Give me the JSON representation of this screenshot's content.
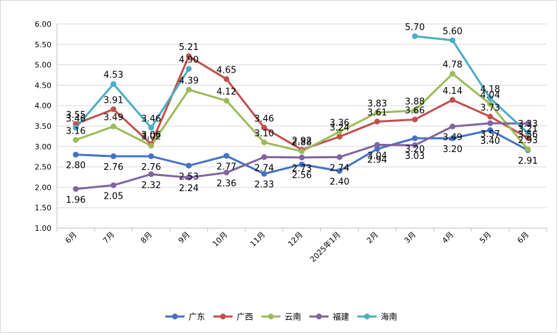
{
  "chart_data": {
    "type": "line",
    "categories": [
      "6月",
      "7月",
      "8月",
      "9月",
      "10月",
      "11月",
      "12月",
      "2025年1月",
      "2月",
      "3月",
      "4月",
      "5月",
      "6月"
    ],
    "ylim": [
      1.0,
      6.0
    ],
    "yticks": [
      "1.00",
      "1.50",
      "2.00",
      "2.50",
      "3.00",
      "3.50",
      "4.00",
      "4.50",
      "5.00",
      "5.50",
      "6.00"
    ],
    "grid": "horizontal",
    "legend_position": "bottom",
    "series": [
      {
        "name": "广东",
        "color": "#4472c4",
        "values": [
          2.8,
          2.76,
          2.76,
          2.53,
          2.77,
          2.33,
          2.56,
          2.4,
          2.94,
          3.2,
          3.2,
          3.4,
          2.91
        ]
      },
      {
        "name": "广西",
        "color": "#c0504d",
        "values": [
          3.55,
          3.91,
          3.06,
          5.21,
          4.65,
          3.46,
          2.92,
          3.24,
          3.61,
          3.66,
          4.14,
          3.73,
          3.21
        ]
      },
      {
        "name": "云南",
        "color": "#9bbb59",
        "values": [
          3.16,
          3.49,
          3.02,
          4.39,
          4.12,
          3.1,
          2.88,
          3.36,
          3.83,
          3.88,
          4.78,
          4.04,
          2.93
        ]
      },
      {
        "name": "福建",
        "color": "#8064a2",
        "values": [
          1.96,
          2.05,
          2.32,
          2.24,
          2.36,
          2.74,
          2.73,
          2.74,
          3.04,
          3.03,
          3.49,
          3.57,
          3.56
        ]
      },
      {
        "name": "海南",
        "color": "#4bacc6",
        "values": [
          3.46,
          4.53,
          3.46,
          4.9,
          null,
          null,
          null,
          null,
          null,
          5.7,
          5.6,
          4.18,
          3.33
        ]
      }
    ],
    "data_labels": [
      [
        "2.80",
        "2.76",
        "2.76",
        "2.53",
        "2.77",
        "2.33",
        "2.56",
        "2.40",
        "2.94",
        "3.20",
        "3.20",
        "3.40",
        "2.91"
      ],
      [
        "3.55",
        "3.91",
        "3.06",
        "5.21",
        "4.65",
        "3.46",
        "2.92",
        "3.24",
        "3.61",
        "3.66",
        "4.14",
        "3.73",
        "3.21"
      ],
      [
        "3.16",
        "3.49",
        "3.02",
        "4.39",
        "4.12",
        "3.10",
        "2.88",
        "3.36",
        "3.83",
        "3.88",
        "4.78",
        "4.04",
        "2.93"
      ],
      [
        "1.96",
        "2.05",
        "2.32",
        "2.24",
        "2.36",
        "2.74",
        "2.73",
        "2.74",
        "3.04",
        "3.03",
        "3.49",
        "3.57",
        "3.56"
      ],
      [
        "3.46",
        "4.53",
        "3.46",
        "4.90",
        null,
        null,
        null,
        null,
        null,
        "5.70",
        "5.60",
        "4.18",
        "3.33"
      ]
    ]
  }
}
